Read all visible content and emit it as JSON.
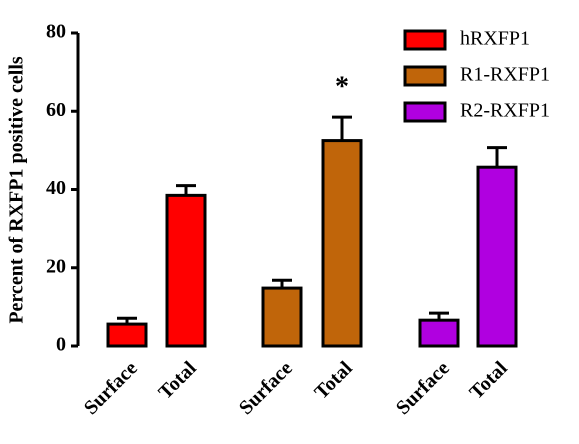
{
  "chart_data": {
    "type": "bar",
    "y_label": "Percent of RXFP1 positive cells",
    "categories": [
      "Surface",
      "Total",
      "Surface",
      "Total",
      "Surface",
      "Total"
    ],
    "series": [
      {
        "name": "hRXFP1",
        "color": "#ff0000",
        "values": [
          5.6,
          38.5,
          null,
          null,
          null,
          null
        ],
        "errors": [
          1.5,
          2.5,
          null,
          null,
          null,
          null
        ]
      },
      {
        "name": "R1-RXFP1",
        "color": "#c0650a",
        "values": [
          null,
          null,
          14.8,
          52.5,
          null,
          null
        ],
        "errors": [
          null,
          null,
          2,
          6,
          null,
          null
        ]
      },
      {
        "name": "R2-RXFP1",
        "color": "#b000e0",
        "values": [
          null,
          null,
          null,
          null,
          6.6,
          45.7
        ],
        "errors": [
          null,
          null,
          null,
          null,
          1.8,
          5
        ]
      }
    ],
    "annotations": [
      "*"
    ],
    "ylim": [
      0,
      80
    ],
    "yticks": [
      0,
      20,
      40,
      60,
      80
    ],
    "legend": "upper right"
  }
}
